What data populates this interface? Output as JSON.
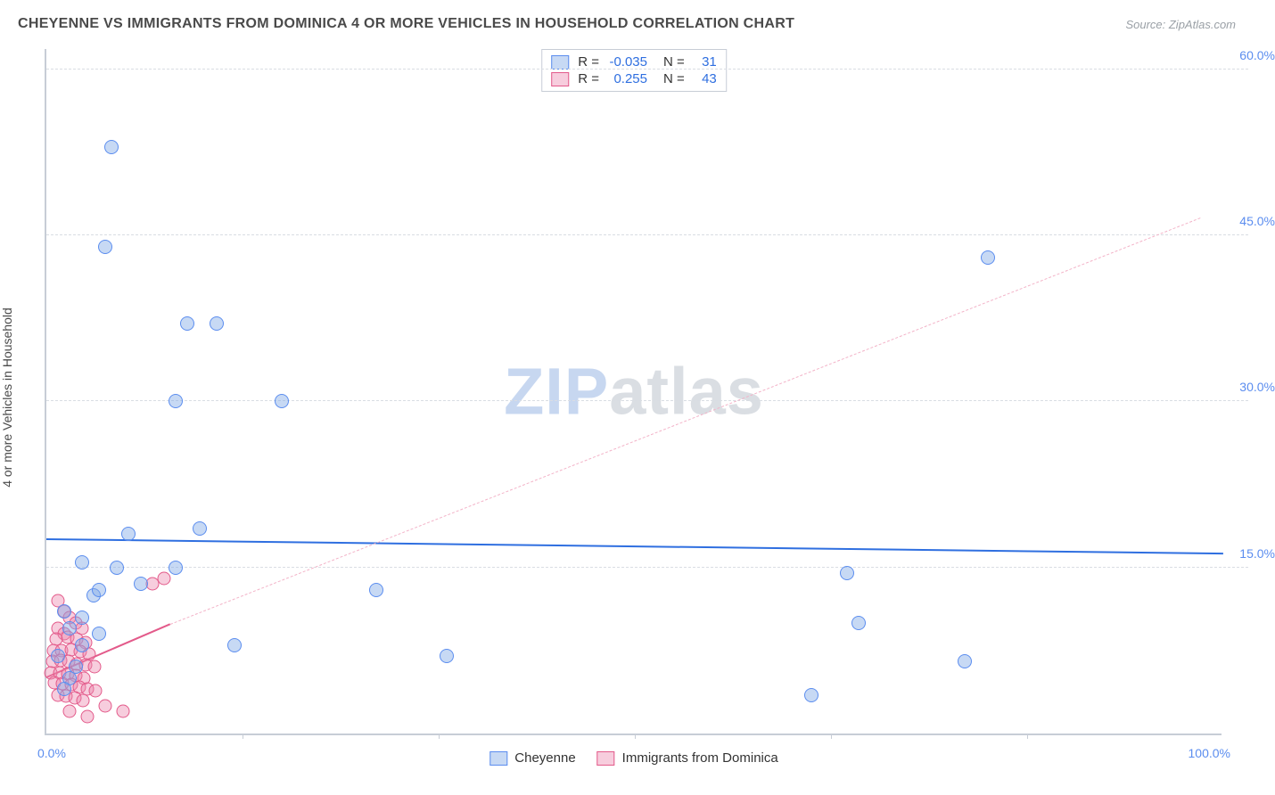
{
  "title": "CHEYENNE VS IMMIGRANTS FROM DOMINICA 4 OR MORE VEHICLES IN HOUSEHOLD CORRELATION CHART",
  "source": "Source: ZipAtlas.com",
  "y_axis_title": "4 or more Vehicles in Household",
  "watermark": {
    "zip": "ZIP",
    "atlas": "atlas"
  },
  "chart": {
    "type": "scatter",
    "xlim": [
      0,
      100
    ],
    "ylim": [
      0,
      62
    ],
    "y_ticks": [
      15,
      30,
      45,
      60
    ],
    "y_tick_labels": [
      "15.0%",
      "30.0%",
      "45.0%",
      "60.0%"
    ],
    "x_tick_labels": {
      "min": "0.0%",
      "max": "100.0%"
    },
    "background_color": "#ffffff",
    "grid_color": "#d9dde3",
    "axis_color": "#c7cdd6",
    "marker_size": 16,
    "series": {
      "blue": {
        "label": "Cheyenne",
        "fill": "rgba(130,170,230,0.45)",
        "stroke": "#5b8def",
        "R": "-0.035",
        "N": "31",
        "trend": {
          "y_at_x0": 17.5,
          "y_at_x100": 16.2,
          "color": "#2f6fe0",
          "width": 2.5
        },
        "points": [
          [
            5.5,
            53
          ],
          [
            5,
            44
          ],
          [
            12,
            37
          ],
          [
            14.5,
            37
          ],
          [
            11,
            30
          ],
          [
            20,
            30
          ],
          [
            80,
            43
          ],
          [
            68,
            14.5
          ],
          [
            69,
            10
          ],
          [
            65,
            3.5
          ],
          [
            78,
            6.5
          ],
          [
            34,
            7
          ],
          [
            28,
            13
          ],
          [
            16,
            8
          ],
          [
            7,
            18
          ],
          [
            13,
            18.5
          ],
          [
            3,
            15.5
          ],
          [
            4,
            12.5
          ],
          [
            4.5,
            13
          ],
          [
            8,
            13.5
          ],
          [
            6,
            15
          ],
          [
            11,
            15
          ],
          [
            1.5,
            11
          ],
          [
            3,
            10.5
          ],
          [
            2,
            9.5
          ],
          [
            3,
            8
          ],
          [
            4.5,
            9
          ],
          [
            2.5,
            6
          ],
          [
            2,
            5
          ],
          [
            1.5,
            4
          ],
          [
            1,
            7
          ]
        ]
      },
      "pink": {
        "label": "Immigrants from Dominica",
        "fill": "rgba(235,130,170,0.40)",
        "stroke": "#e35a8a",
        "R": "0.255",
        "N": "43",
        "trend_solid": {
          "x0": 0,
          "y0": 5,
          "x1": 10.5,
          "y1": 9.8,
          "color": "#e35a8a",
          "width": 2
        },
        "trend_dash": {
          "x0": 10.5,
          "y0": 9.8,
          "x1": 98,
          "y1": 46.5,
          "color": "#f3b3c8",
          "width": 1.5
        },
        "points": [
          [
            10,
            14
          ],
          [
            9,
            13.5
          ],
          [
            1,
            12
          ],
          [
            1.5,
            11
          ],
          [
            2,
            10.5
          ],
          [
            2.5,
            10
          ],
          [
            1,
            9.5
          ],
          [
            1.5,
            9
          ],
          [
            3,
            9.5
          ],
          [
            0.8,
            8.5
          ],
          [
            1.8,
            8.7
          ],
          [
            2.6,
            8.5
          ],
          [
            3.3,
            8.2
          ],
          [
            0.6,
            7.5
          ],
          [
            1.3,
            7.5
          ],
          [
            2.1,
            7.6
          ],
          [
            2.9,
            7.4
          ],
          [
            3.6,
            7.2
          ],
          [
            0.5,
            6.5
          ],
          [
            1.2,
            6.6
          ],
          [
            1.9,
            6.5
          ],
          [
            2.6,
            6.3
          ],
          [
            3.3,
            6.2
          ],
          [
            4.1,
            6
          ],
          [
            0.4,
            5.5
          ],
          [
            1.1,
            5.5
          ],
          [
            1.8,
            5.4
          ],
          [
            2.5,
            5.2
          ],
          [
            3.2,
            5
          ],
          [
            0.7,
            4.6
          ],
          [
            1.4,
            4.5
          ],
          [
            2.1,
            4.4
          ],
          [
            2.8,
            4.2
          ],
          [
            3.5,
            4
          ],
          [
            4.2,
            3.9
          ],
          [
            1,
            3.5
          ],
          [
            1.7,
            3.4
          ],
          [
            2.4,
            3.2
          ],
          [
            3.1,
            3
          ],
          [
            5,
            2.5
          ],
          [
            6.5,
            2
          ],
          [
            2,
            2
          ],
          [
            3.5,
            1.5
          ]
        ]
      }
    }
  },
  "legend_stats": {
    "R_label": "R =",
    "N_label": "N ="
  }
}
